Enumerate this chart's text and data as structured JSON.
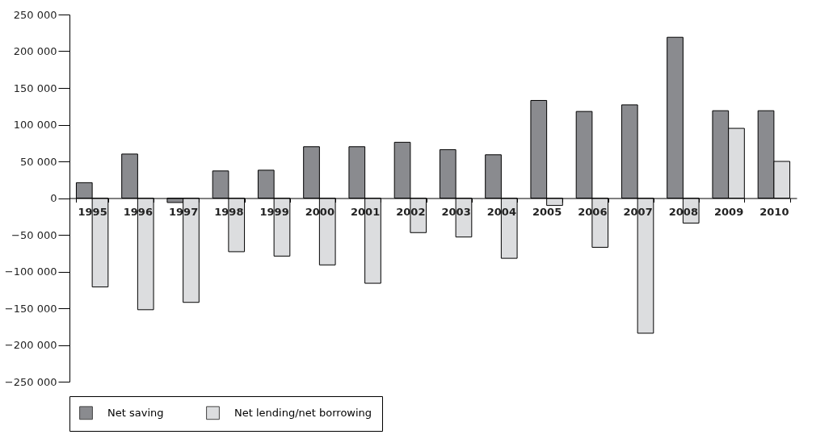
{
  "chart_data": {
    "type": "bar",
    "categories": [
      "1995",
      "1996",
      "1997",
      "1998",
      "1999",
      "2000",
      "2001",
      "2002",
      "2003",
      "2004",
      "2005",
      "2006",
      "2007",
      "2008",
      "2009",
      "2010"
    ],
    "series": [
      {
        "name": "Net saving",
        "color": "#8a8b8f",
        "values": [
          21000,
          60000,
          -6000,
          37000,
          38000,
          70000,
          70000,
          76000,
          66000,
          59000,
          133000,
          118000,
          127000,
          219000,
          119000,
          119000
        ]
      },
      {
        "name": "Net lending/net borrowing",
        "color": "#dcdddf",
        "values": [
          -121000,
          -152000,
          -142000,
          -73000,
          -79000,
          -91000,
          -116000,
          -47000,
          -53000,
          -82000,
          -10000,
          -67000,
          -184000,
          -34000,
          95000,
          50000
        ]
      }
    ],
    "ylim": [
      -250000,
      250000
    ],
    "yticks": [
      {
        "value": -250000,
        "label": "−250 000"
      },
      {
        "value": -200000,
        "label": "−200 000"
      },
      {
        "value": -150000,
        "label": "−150 000"
      },
      {
        "value": -100000,
        "label": "−100 000"
      },
      {
        "value": -50000,
        "label": "−50 000"
      },
      {
        "value": 0,
        "label": "0"
      },
      {
        "value": 50000,
        "label": "50 000"
      },
      {
        "value": 100000,
        "label": "100 000"
      },
      {
        "value": 150000,
        "label": "150 000"
      },
      {
        "value": 200000,
        "label": "200 000"
      },
      {
        "value": 250000,
        "label": "250 000"
      }
    ],
    "grid": false,
    "legend": "bottom"
  }
}
